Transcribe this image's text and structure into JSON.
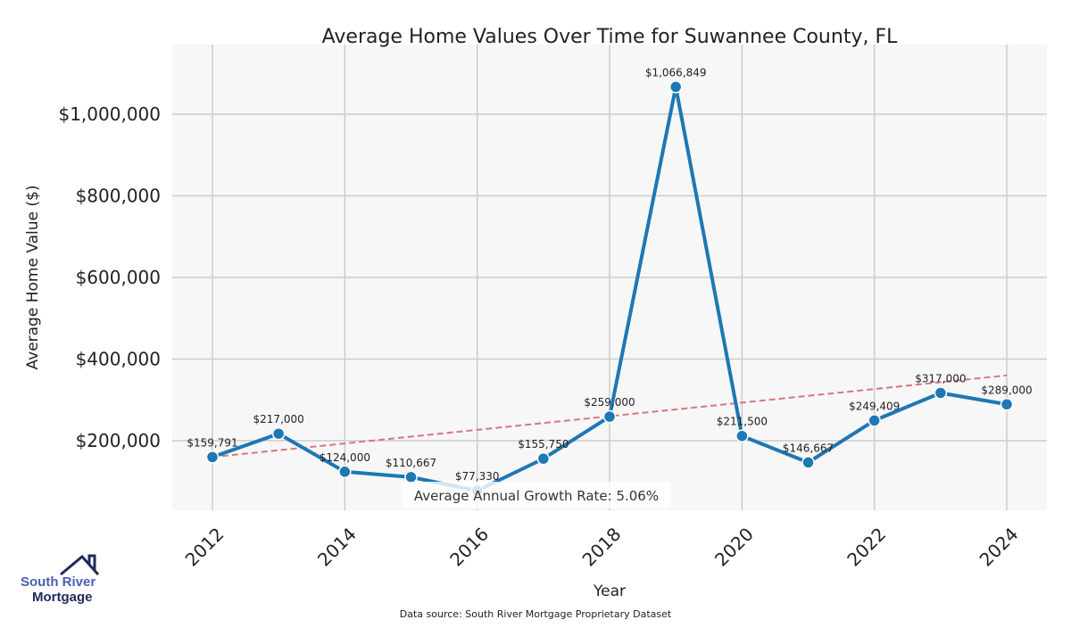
{
  "chart_data": {
    "type": "line",
    "title": "Average Home Values Over Time for Suwannee County, FL",
    "xlabel": "Year",
    "ylabel": "Average Home Value ($)",
    "x": [
      2012,
      2013,
      2014,
      2015,
      2016,
      2017,
      2018,
      2019,
      2020,
      2021,
      2022,
      2023,
      2024
    ],
    "values": [
      159791,
      217000,
      124000,
      110667,
      77330,
      155750,
      259000,
      1066849,
      211500,
      146667,
      249409,
      317000,
      289000
    ],
    "data_labels": [
      "$159,791",
      "$217,000",
      "$124,000",
      "$110,667",
      "$77,330",
      "$155,750",
      "$259,000",
      "$1,066,849",
      "$211,500",
      "$146,667",
      "$249,409",
      "$317,000",
      "$289,000"
    ],
    "xticks": [
      2012,
      2014,
      2016,
      2018,
      2020,
      2022,
      2024
    ],
    "yticks": [
      200000,
      400000,
      600000,
      800000,
      1000000
    ],
    "ytick_labels": [
      "$200,000",
      "$400,000",
      "$600,000",
      "$800,000",
      "$1,000,000"
    ],
    "ylim": [
      30000,
      1170000
    ],
    "xlim": [
      2011.4,
      2024.6
    ],
    "trend": {
      "start": [
        2012,
        159791
      ],
      "end": [
        2024,
        360000
      ],
      "color": "#d9777c"
    },
    "annotation": "Average Annual Growth Rate: 5.06%",
    "line_color": "#1f77b4",
    "grid": true
  },
  "logo": {
    "line1": "South River",
    "line2": "Mortgage"
  },
  "source": "Data source: South River Mortgage Proprietary Dataset"
}
